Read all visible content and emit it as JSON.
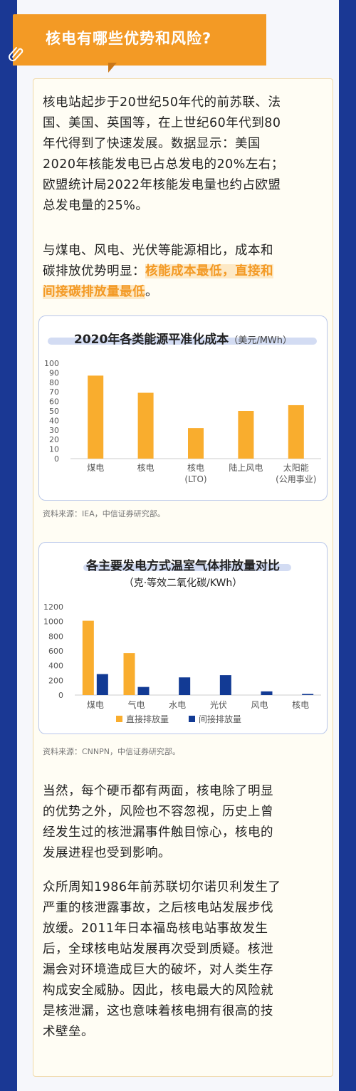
{
  "header": {
    "title": "核电有哪些优势和风险?"
  },
  "intro": {
    "lines": [
      "核电站起步于20世纪50年代的前苏联、法",
      "国、美国、英国等，在上世纪60年代到80",
      "年代得到了快速发展。数据显示：美国",
      "2020年核能发电已占总发电的20%左右；",
      "欧盟统计局2022年核能发电量也约占欧盟",
      "总发电量的25%。"
    ]
  },
  "comparison": {
    "line1": "与煤电、风电、光伏等能源相比，成本和",
    "line2_prefix": "碳排放优势明显：",
    "line2_highlight": "核能成本最低，直接和",
    "line3_highlight": "间接碳排放量最低",
    "line3_suffix": "。"
  },
  "chart1_source": "资料来源：IEA，中信证券研究部。",
  "chart2_source": "资料来源：CNNPN，中信证券研究部。",
  "risk": {
    "para1": [
      "当然，每个硬币都有两面，核电除了明显",
      "的优势之外，风险也不容忽视，历史上曾",
      "经发生过的核泄漏事件触目惊心，核电的",
      "发展进程也受到影响。"
    ],
    "para2": [
      "众所周知1986年前苏联切尔诺贝利发生了",
      "严重的核泄露事故，之后核电站发展步伐",
      "放缓。2011年日本福岛核电站事故发生",
      "后，全球核电站发展再次受到质疑。核泄",
      "漏会对环境造成巨大的破坏，对人类生存",
      "构成安全威胁。因此，核电最大的风险就",
      "是核泄漏，这也意味着核电拥有很高的技",
      "术壁垒。"
    ]
  },
  "colors": {
    "accent_orange": "#f39a25",
    "bar_orange": "#f9ad2e",
    "bar_blue": "#123a94",
    "page_blue": "#1f3f9e"
  },
  "chart_data": [
    {
      "type": "bar",
      "title": "2020年各类能源平准化成本",
      "unit": "（美元/MWh）",
      "categories": [
        "煤电",
        "核电",
        "核电\n(LTO)",
        "陆上风电",
        "太阳能\n(公用事业)"
      ],
      "values": [
        87,
        69,
        32,
        50,
        56
      ],
      "ylim": [
        0,
        100
      ],
      "yticks": [
        0,
        10,
        20,
        30,
        40,
        50,
        60,
        70,
        80,
        90,
        100
      ],
      "grid": false
    },
    {
      "type": "bar",
      "title": "各主要发电方式温室气体排放量对比",
      "subtitle": "（克·等效二氧化碳/KWh）",
      "categories": [
        "煤电",
        "气电",
        "水电",
        "光伏",
        "风电",
        "核电"
      ],
      "series": [
        {
          "name": "直接排放量",
          "values": [
            1010,
            570,
            0,
            0,
            0,
            0
          ]
        },
        {
          "name": "间接排放量",
          "values": [
            285,
            110,
            240,
            270,
            50,
            15
          ]
        }
      ],
      "ylim": [
        0,
        1200
      ],
      "yticks": [
        0,
        200,
        400,
        600,
        800,
        1000,
        1200
      ],
      "legend": "bottom",
      "grid": false
    }
  ]
}
